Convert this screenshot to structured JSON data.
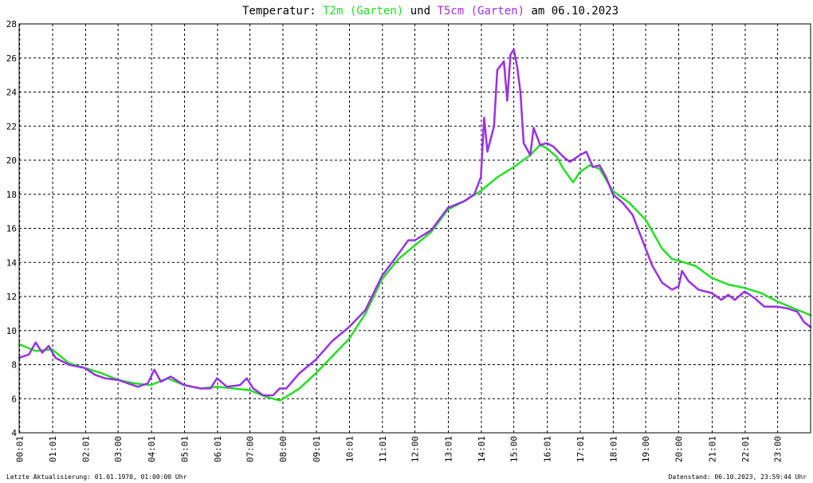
{
  "chart_data": {
    "type": "line",
    "title": {
      "prefix": "Temperatur: ",
      "series1": "T2m (Garten)",
      "connector": " und ",
      "series2": "T5cm (Garten)",
      "suffix": " am 06.10.2023"
    },
    "xlabel": "",
    "ylabel": "",
    "ylim": [
      4,
      28
    ],
    "xlim_hours": [
      0,
      24
    ],
    "grid": true,
    "y_ticks": [
      "4",
      "6",
      "8",
      "10",
      "12",
      "14",
      "16",
      "18",
      "20",
      "22",
      "24",
      "26",
      "28"
    ],
    "x_ticks": [
      {
        "label": "00:01",
        "hour": 0.0167
      },
      {
        "label": "01:01",
        "hour": 1.0167
      },
      {
        "label": "02:01",
        "hour": 2.0167
      },
      {
        "label": "03:00",
        "hour": 3.0
      },
      {
        "label": "04:01",
        "hour": 4.0167
      },
      {
        "label": "05:01",
        "hour": 5.0167
      },
      {
        "label": "06:01",
        "hour": 6.0167
      },
      {
        "label": "07:00",
        "hour": 7.0
      },
      {
        "label": "08:00",
        "hour": 8.0
      },
      {
        "label": "09:01",
        "hour": 9.0167
      },
      {
        "label": "10:01",
        "hour": 10.0167
      },
      {
        "label": "11:01",
        "hour": 11.0167
      },
      {
        "label": "12:00",
        "hour": 12.0
      },
      {
        "label": "13:01",
        "hour": 13.0167
      },
      {
        "label": "14:01",
        "hour": 14.0167
      },
      {
        "label": "15:00",
        "hour": 15.0
      },
      {
        "label": "16:01",
        "hour": 16.0167
      },
      {
        "label": "17:01",
        "hour": 17.0167
      },
      {
        "label": "18:01",
        "hour": 18.0167
      },
      {
        "label": "19:00",
        "hour": 19.0
      },
      {
        "label": "20:00",
        "hour": 20.0
      },
      {
        "label": "21:01",
        "hour": 21.0167
      },
      {
        "label": "22:01",
        "hour": 22.0167
      },
      {
        "label": "23:00",
        "hour": 23.0
      }
    ],
    "series": [
      {
        "name": "T2m (Garten)",
        "color": "#22e022",
        "points": [
          [
            0.0,
            9.2
          ],
          [
            0.5,
            8.8
          ],
          [
            1.0,
            8.9
          ],
          [
            1.5,
            8.1
          ],
          [
            2.0,
            7.8
          ],
          [
            2.5,
            7.5
          ],
          [
            3.0,
            7.1
          ],
          [
            3.5,
            6.9
          ],
          [
            4.0,
            6.8
          ],
          [
            4.5,
            7.2
          ],
          [
            5.0,
            6.8
          ],
          [
            5.5,
            6.6
          ],
          [
            6.0,
            6.7
          ],
          [
            6.5,
            6.6
          ],
          [
            7.0,
            6.5
          ],
          [
            7.5,
            6.1
          ],
          [
            7.9,
            5.9
          ],
          [
            8.0,
            6.0
          ],
          [
            8.5,
            6.6
          ],
          [
            9.0,
            7.5
          ],
          [
            9.5,
            8.5
          ],
          [
            10.0,
            9.5
          ],
          [
            10.5,
            11.0
          ],
          [
            11.0,
            13.0
          ],
          [
            11.5,
            14.2
          ],
          [
            12.0,
            15.0
          ],
          [
            12.5,
            15.8
          ],
          [
            13.0,
            17.1
          ],
          [
            13.5,
            17.6
          ],
          [
            14.0,
            18.2
          ],
          [
            14.5,
            19.0
          ],
          [
            15.0,
            19.6
          ],
          [
            15.5,
            20.3
          ],
          [
            15.8,
            20.9
          ],
          [
            16.0,
            20.7
          ],
          [
            16.3,
            20.2
          ],
          [
            16.5,
            19.5
          ],
          [
            16.8,
            18.7
          ],
          [
            17.0,
            19.3
          ],
          [
            17.3,
            19.7
          ],
          [
            17.6,
            19.5
          ],
          [
            18.0,
            18.2
          ],
          [
            18.5,
            17.5
          ],
          [
            19.0,
            16.5
          ],
          [
            19.5,
            14.8
          ],
          [
            19.8,
            14.2
          ],
          [
            20.0,
            14.1
          ],
          [
            20.5,
            13.8
          ],
          [
            21.0,
            13.1
          ],
          [
            21.5,
            12.7
          ],
          [
            22.0,
            12.5
          ],
          [
            22.5,
            12.2
          ],
          [
            23.0,
            11.7
          ],
          [
            23.5,
            11.3
          ],
          [
            24.0,
            10.9
          ]
        ]
      },
      {
        "name": "T5cm (Garten)",
        "color": "#9a30e6",
        "points": [
          [
            0.0,
            8.4
          ],
          [
            0.3,
            8.6
          ],
          [
            0.5,
            9.3
          ],
          [
            0.7,
            8.7
          ],
          [
            0.9,
            9.1
          ],
          [
            1.1,
            8.4
          ],
          [
            1.5,
            8.0
          ],
          [
            2.0,
            7.8
          ],
          [
            2.3,
            7.4
          ],
          [
            2.6,
            7.2
          ],
          [
            3.0,
            7.1
          ],
          [
            3.3,
            6.9
          ],
          [
            3.6,
            6.7
          ],
          [
            3.9,
            6.9
          ],
          [
            4.1,
            7.7
          ],
          [
            4.3,
            7.0
          ],
          [
            4.6,
            7.3
          ],
          [
            5.0,
            6.8
          ],
          [
            5.5,
            6.6
          ],
          [
            5.8,
            6.6
          ],
          [
            6.0,
            7.2
          ],
          [
            6.3,
            6.7
          ],
          [
            6.7,
            6.8
          ],
          [
            6.9,
            7.2
          ],
          [
            7.1,
            6.6
          ],
          [
            7.4,
            6.2
          ],
          [
            7.7,
            6.2
          ],
          [
            7.9,
            6.6
          ],
          [
            8.1,
            6.6
          ],
          [
            8.5,
            7.5
          ],
          [
            9.0,
            8.3
          ],
          [
            9.5,
            9.4
          ],
          [
            10.0,
            10.2
          ],
          [
            10.5,
            11.2
          ],
          [
            11.0,
            13.2
          ],
          [
            11.5,
            14.5
          ],
          [
            11.8,
            15.3
          ],
          [
            12.0,
            15.3
          ],
          [
            12.5,
            15.9
          ],
          [
            13.0,
            17.2
          ],
          [
            13.5,
            17.6
          ],
          [
            13.8,
            18.0
          ],
          [
            14.0,
            19.0
          ],
          [
            14.1,
            22.5
          ],
          [
            14.2,
            20.5
          ],
          [
            14.4,
            22.0
          ],
          [
            14.5,
            25.3
          ],
          [
            14.7,
            25.8
          ],
          [
            14.8,
            23.5
          ],
          [
            14.9,
            26.2
          ],
          [
            15.0,
            26.5
          ],
          [
            15.1,
            25.5
          ],
          [
            15.2,
            24.0
          ],
          [
            15.3,
            21.0
          ],
          [
            15.5,
            20.3
          ],
          [
            15.6,
            21.9
          ],
          [
            15.8,
            20.9
          ],
          [
            16.0,
            21.0
          ],
          [
            16.2,
            20.8
          ],
          [
            16.5,
            20.2
          ],
          [
            16.7,
            19.9
          ],
          [
            17.0,
            20.3
          ],
          [
            17.2,
            20.5
          ],
          [
            17.4,
            19.6
          ],
          [
            17.6,
            19.7
          ],
          [
            17.8,
            19.0
          ],
          [
            18.0,
            18.0
          ],
          [
            18.3,
            17.5
          ],
          [
            18.6,
            16.8
          ],
          [
            18.9,
            15.3
          ],
          [
            19.2,
            13.8
          ],
          [
            19.5,
            12.8
          ],
          [
            19.8,
            12.4
          ],
          [
            20.0,
            12.6
          ],
          [
            20.1,
            13.5
          ],
          [
            20.3,
            12.9
          ],
          [
            20.6,
            12.4
          ],
          [
            21.0,
            12.2
          ],
          [
            21.3,
            11.8
          ],
          [
            21.5,
            12.1
          ],
          [
            21.7,
            11.8
          ],
          [
            22.0,
            12.3
          ],
          [
            22.3,
            11.9
          ],
          [
            22.6,
            11.4
          ],
          [
            23.0,
            11.4
          ],
          [
            23.3,
            11.3
          ],
          [
            23.6,
            11.1
          ],
          [
            23.8,
            10.5
          ],
          [
            24.0,
            10.2
          ]
        ]
      }
    ]
  },
  "footer": {
    "left": "Letzte Aktualisierung: 01.01.1970, 01:00:00 Uhr",
    "right": "Datenstand: 06.10.2023, 23:59:44 Uhr"
  }
}
